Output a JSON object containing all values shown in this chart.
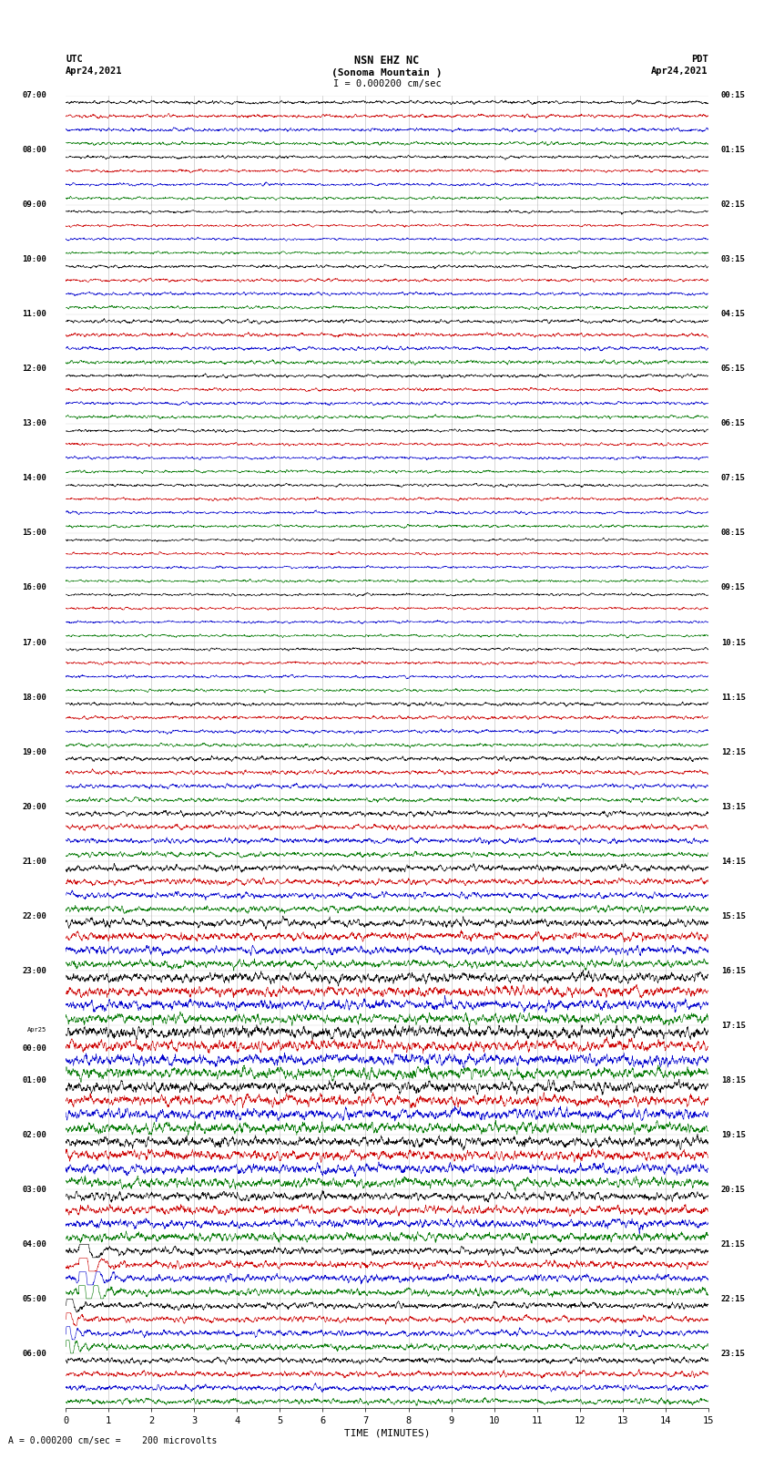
{
  "title_line1": "NSN EHZ NC",
  "title_line2": "(Sonoma Mountain )",
  "title_scale": "I = 0.000200 cm/sec",
  "left_label_top": "UTC",
  "left_label_date": "Apr24,2021",
  "right_label_top": "PDT",
  "right_label_date": "Apr24,2021",
  "xlabel": "TIME (MINUTES)",
  "bottom_note": "= 0.000200 cm/sec =    200 microvolts",
  "bg_color": "#ffffff",
  "trace_colors": [
    "#000000",
    "#cc0000",
    "#0000cc",
    "#007700"
  ],
  "n_groups": 24,
  "n_minutes": 15,
  "samples_per_trace": 2700,
  "left_times_utc": [
    "07:00",
    "08:00",
    "09:00",
    "10:00",
    "11:00",
    "12:00",
    "13:00",
    "14:00",
    "15:00",
    "16:00",
    "17:00",
    "18:00",
    "19:00",
    "20:00",
    "21:00",
    "22:00",
    "23:00",
    "Apr25\n00:00",
    "01:00",
    "02:00",
    "03:00",
    "04:00",
    "05:00",
    "06:00"
  ],
  "right_times_pdt": [
    "00:15",
    "01:15",
    "02:15",
    "03:15",
    "04:15",
    "05:15",
    "06:15",
    "07:15",
    "08:15",
    "09:15",
    "10:15",
    "11:15",
    "12:15",
    "13:15",
    "14:15",
    "15:15",
    "16:15",
    "17:15",
    "18:15",
    "19:15",
    "20:15",
    "21:15",
    "22:15",
    "23:15"
  ],
  "base_noise": [
    0.12,
    0.1,
    0.09,
    0.11,
    0.13,
    0.11,
    0.1,
    0.1,
    0.09,
    0.09,
    0.1,
    0.12,
    0.15,
    0.18,
    0.22,
    0.28,
    0.35,
    0.4,
    0.38,
    0.35,
    0.3,
    0.25,
    0.22,
    0.2
  ],
  "event_group": 21,
  "event_group2": 22,
  "lw": 0.4
}
